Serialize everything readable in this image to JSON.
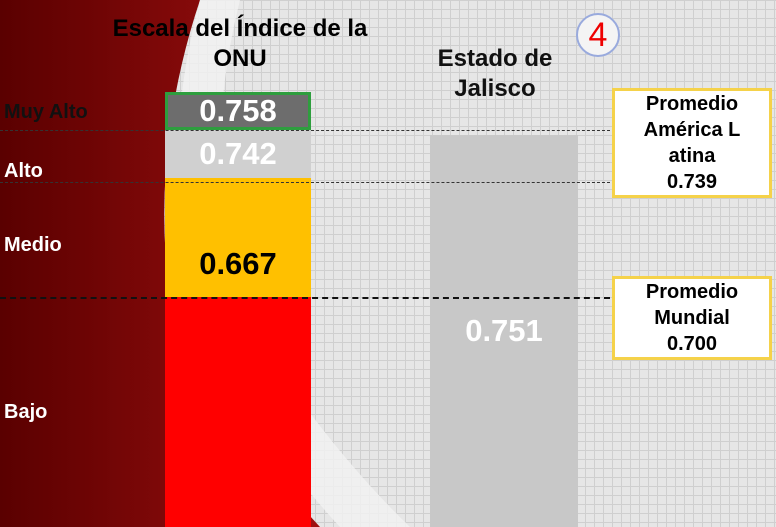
{
  "header": {
    "scale_title": "Escala del Índice de la ONU",
    "state_title": "Estado de Jalisco",
    "badge": "4"
  },
  "levels": [
    "Muy Alto",
    "Alto",
    "Medio",
    "Bajo"
  ],
  "scale_values": [
    "0.758",
    "0.742",
    "0.667"
  ],
  "state_value": "0.751",
  "averages": [
    {
      "label": "Promedio América Latina",
      "value": "0.739"
    },
    {
      "label": "Promedio Mundial",
      "value": "0.700"
    }
  ]
}
